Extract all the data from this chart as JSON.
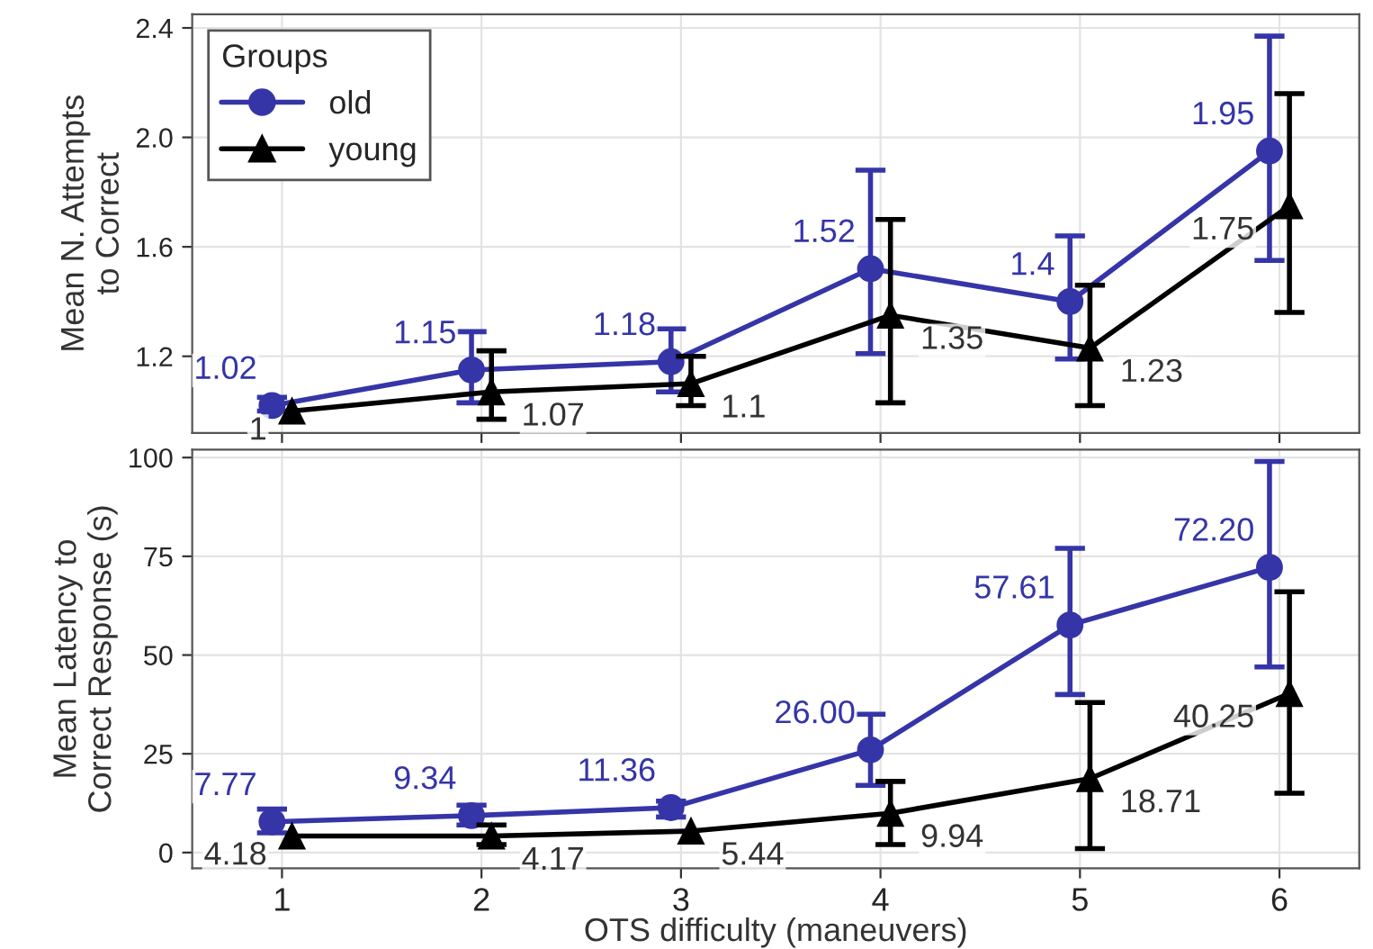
{
  "chart_data": [
    {
      "type": "line",
      "ylabel": "Mean N. Attempts\nto Correct",
      "categories": [
        "1",
        "2",
        "3",
        "4",
        "5",
        "6"
      ],
      "ylim": [
        0.92,
        2.45
      ],
      "yticks": [
        {
          "value": 1.2,
          "label": "1.2"
        },
        {
          "value": 1.6,
          "label": "1.6"
        },
        {
          "value": 2.0,
          "label": "2.0"
        },
        {
          "value": 2.4,
          "label": "2.4"
        }
      ],
      "grid": true,
      "legend": "top left",
      "legend_title": "Groups",
      "tick_labels": "y",
      "series": [
        {
          "name": "old",
          "color": "#3535a8",
          "marker": "circle",
          "values": [
            1.02,
            1.15,
            1.18,
            1.52,
            1.4,
            1.95
          ],
          "value_labels": [
            "1.02",
            "1.15",
            "1.18",
            "1.52",
            "1.4",
            "1.95"
          ],
          "errors": [
            [
              1.0,
              1.05
            ],
            [
              1.03,
              1.29
            ],
            [
              1.07,
              1.3
            ],
            [
              1.21,
              1.88
            ],
            [
              1.19,
              1.64
            ],
            [
              1.55,
              2.37
            ]
          ]
        },
        {
          "name": "young",
          "color": "#000000",
          "marker": "triangle",
          "values": [
            1.0,
            1.07,
            1.1,
            1.35,
            1.23,
            1.75
          ],
          "value_labels": [
            "1",
            "1.07",
            "1.1",
            "1.35",
            "1.23",
            "1.75"
          ],
          "errors": [
            null,
            [
              0.97,
              1.22
            ],
            [
              1.02,
              1.2
            ],
            [
              1.03,
              1.7
            ],
            [
              1.02,
              1.46
            ],
            [
              1.36,
              2.16
            ]
          ]
        }
      ]
    },
    {
      "type": "line",
      "ylabel": "Mean Latency to\nCorrect Response (s)",
      "xlabel": "OTS difficulty (maneuvers)",
      "categories": [
        "1",
        "2",
        "3",
        "4",
        "5",
        "6"
      ],
      "ylim": [
        -4,
        102
      ],
      "yticks": [
        0,
        25,
        50,
        75,
        100
      ],
      "grid": true,
      "series": [
        {
          "color": "#3535a8",
          "marker": "circle",
          "values": [
            7.77,
            9.34,
            11.36,
            26.0,
            57.61,
            72.2
          ],
          "value_labels": [
            "7.77",
            "9.34",
            "11.36",
            "26.00",
            "57.61",
            "72.20"
          ],
          "errors": [
            [
              5,
              11
            ],
            [
              7,
              12
            ],
            [
              9,
              13
            ],
            [
              17,
              35
            ],
            [
              40,
              77
            ],
            [
              47,
              99
            ]
          ]
        },
        {
          "color": "#000000",
          "marker": "triangle",
          "values": [
            4.18,
            4.17,
            5.44,
            9.94,
            18.71,
            40.25
          ],
          "value_labels": [
            "4.18",
            "4.17",
            "5.44",
            "9.94",
            "18.71",
            "40.25"
          ],
          "errors": [
            null,
            [
              2,
              7
            ],
            null,
            [
              2,
              18
            ],
            [
              1,
              38
            ],
            [
              15,
              66
            ]
          ]
        }
      ]
    }
  ]
}
